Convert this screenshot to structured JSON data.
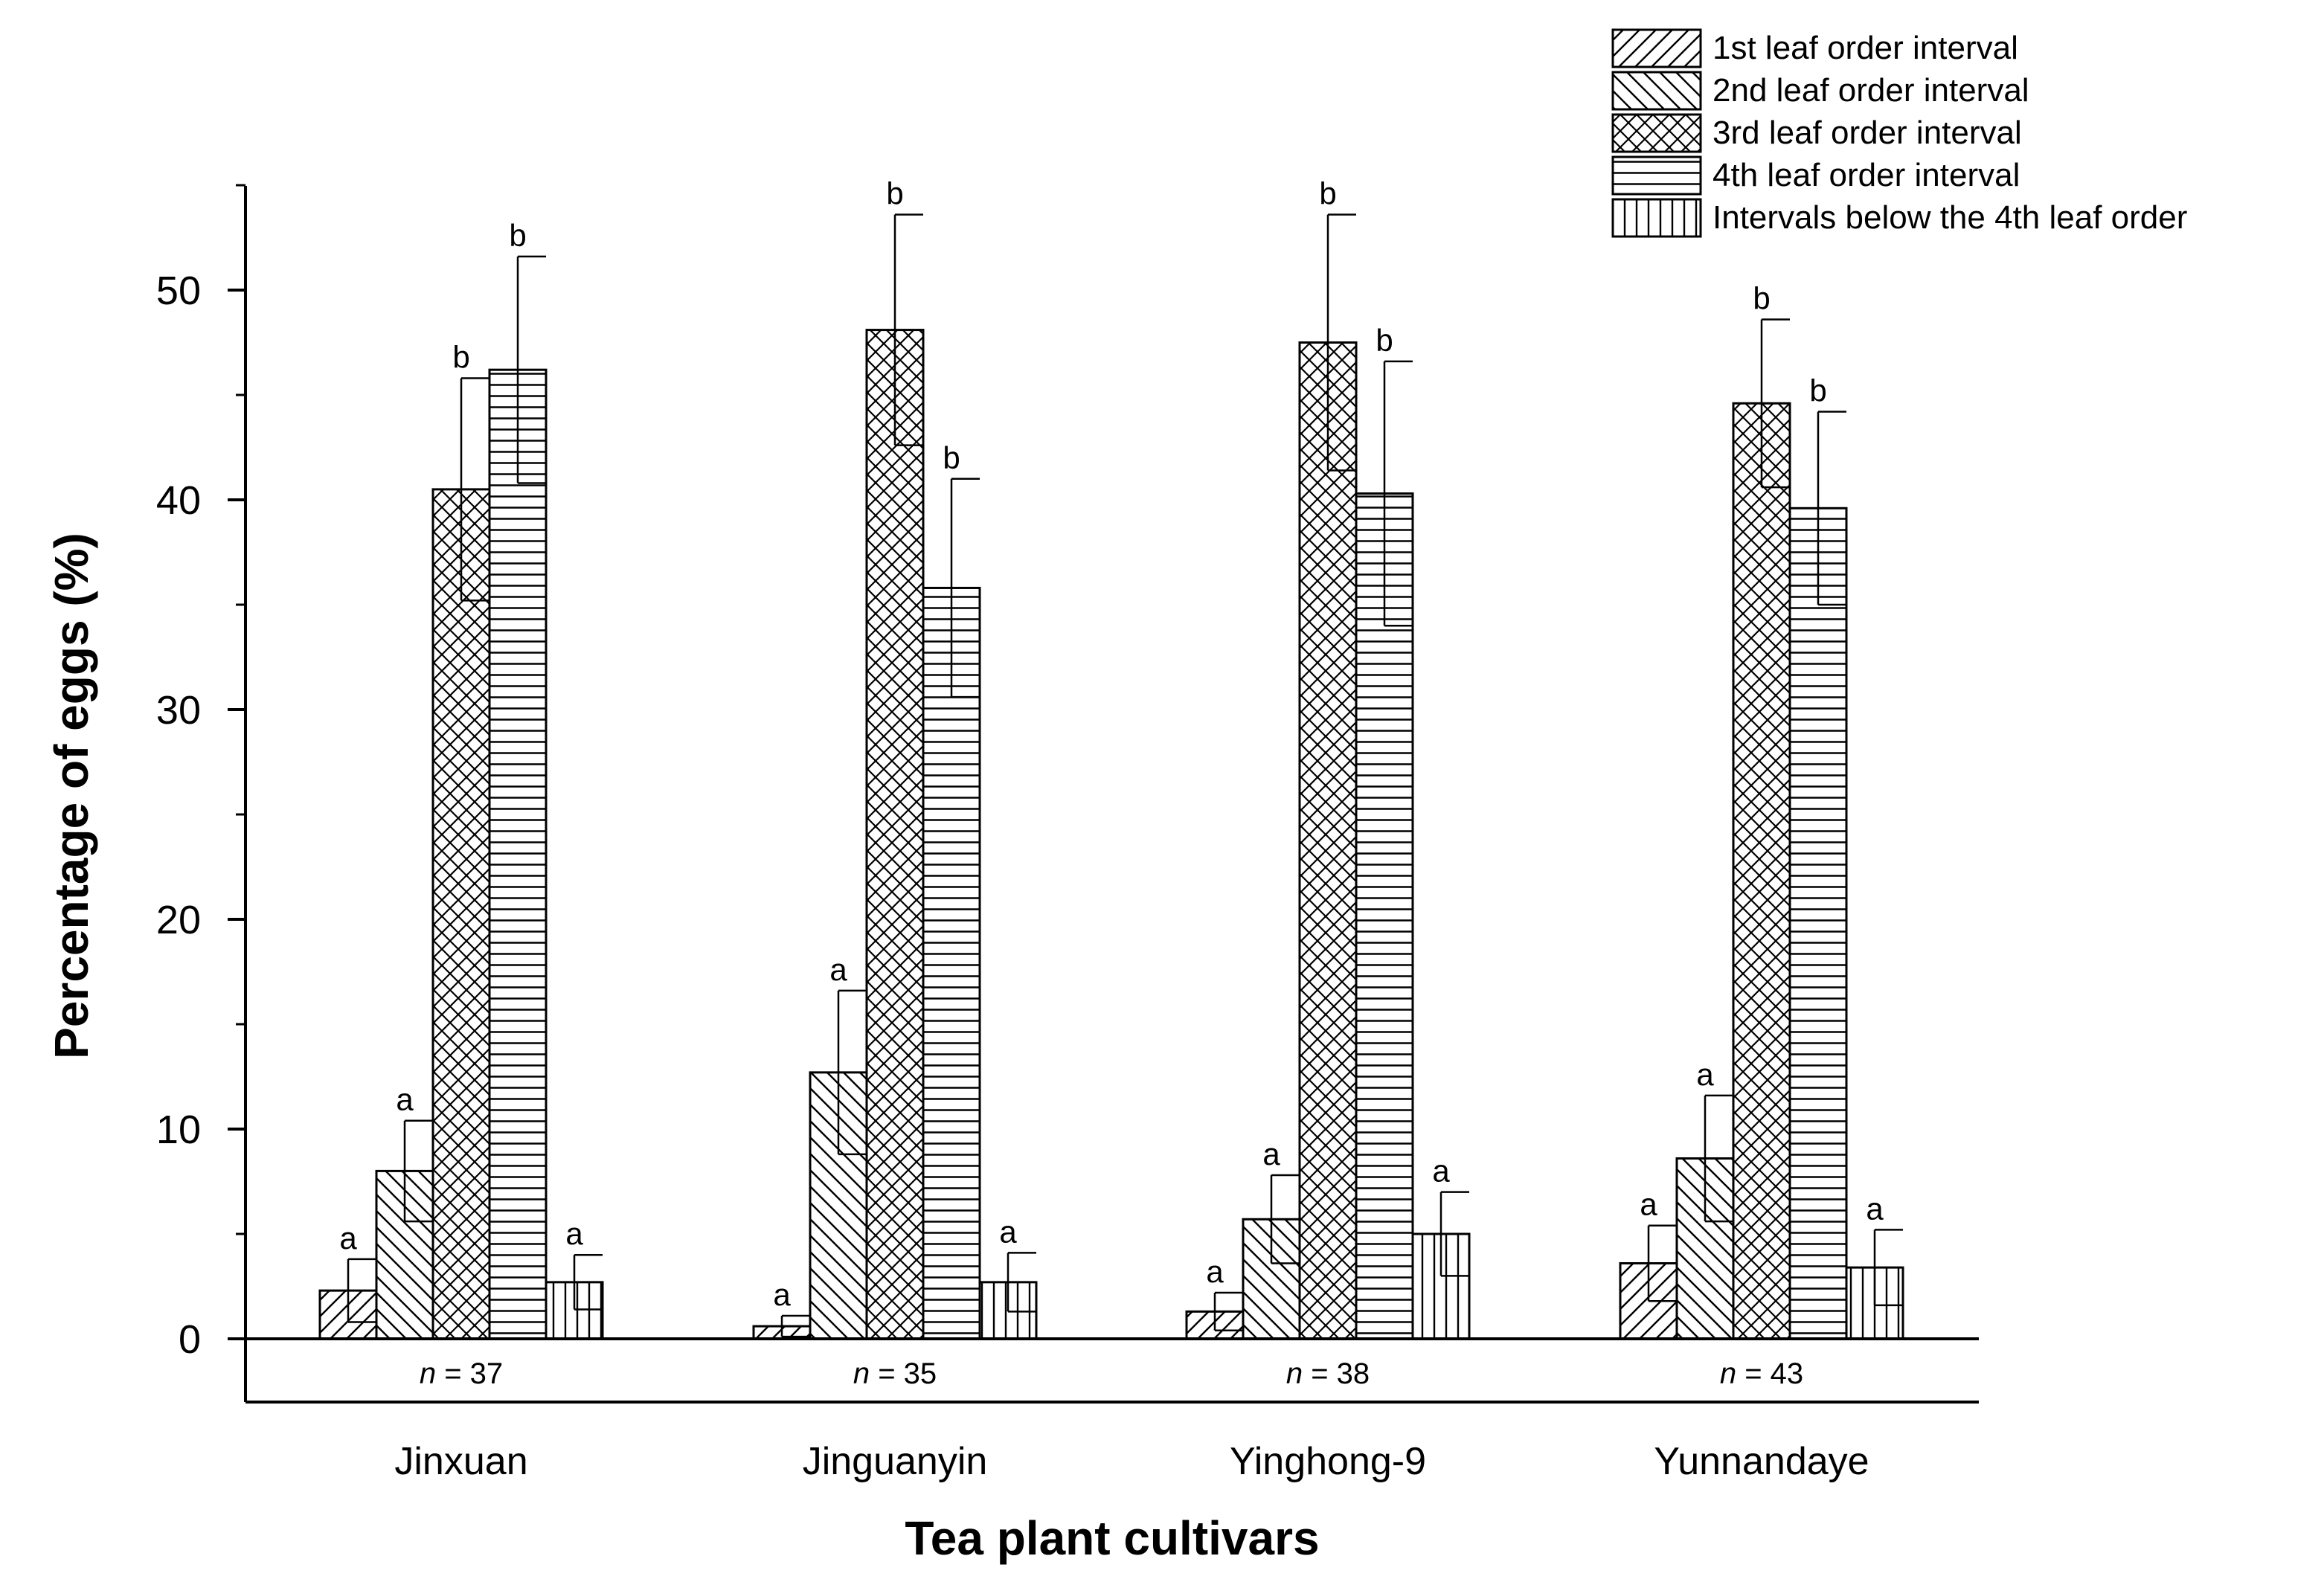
{
  "chart_data": {
    "type": "bar",
    "title": "",
    "xlabel": "Tea plant cultivars",
    "ylabel": "Percentage of eggs (%)",
    "ylim": [
      -3,
      55
    ],
    "yticks": [
      0,
      10,
      20,
      30,
      40,
      50
    ],
    "legend_position": "top-right",
    "categories": [
      "Jinxuan",
      "Jinguanyin",
      "Yinghong-9",
      "Yunnandaye"
    ],
    "sample_sizes": [
      {
        "prefix": "n",
        "text": " = 37"
      },
      {
        "prefix": "n",
        "text": " = 35"
      },
      {
        "prefix": "n",
        "text": " = 38"
      },
      {
        "prefix": "n",
        "text": " = 43"
      }
    ],
    "series": [
      {
        "name": "1st leaf order interval",
        "pattern": "diag-up",
        "values": [
          2.3,
          0.6,
          1.3,
          3.6
        ],
        "errors": [
          1.5,
          0.5,
          0.9,
          1.8
        ],
        "letters": [
          "a",
          "a",
          "a",
          "a"
        ]
      },
      {
        "name": "2nd leaf order interval",
        "pattern": "diag-down",
        "values": [
          8.0,
          12.7,
          5.7,
          8.6
        ],
        "errors": [
          2.4,
          3.9,
          2.1,
          3.0
        ],
        "letters": [
          "a",
          "a",
          "a",
          "a"
        ]
      },
      {
        "name": "3rd leaf order interval",
        "pattern": "crosshatch",
        "values": [
          40.5,
          48.1,
          47.5,
          44.6
        ],
        "errors": [
          5.3,
          5.5,
          6.1,
          4.0
        ],
        "letters": [
          "b",
          "b",
          "b",
          "b"
        ]
      },
      {
        "name": "4th leaf order interval",
        "pattern": "horizontal",
        "values": [
          46.2,
          35.8,
          40.3,
          39.6
        ],
        "errors": [
          5.4,
          5.2,
          6.3,
          4.6
        ],
        "letters": [
          "b",
          "b",
          "b",
          "b"
        ]
      },
      {
        "name": "Intervals below the 4th leaf order",
        "pattern": "vertical",
        "values": [
          2.7,
          2.7,
          5.0,
          3.4
        ],
        "errors": [
          1.3,
          1.4,
          2.0,
          1.8
        ],
        "letters": [
          "a",
          "a",
          "a",
          "a"
        ]
      }
    ]
  }
}
